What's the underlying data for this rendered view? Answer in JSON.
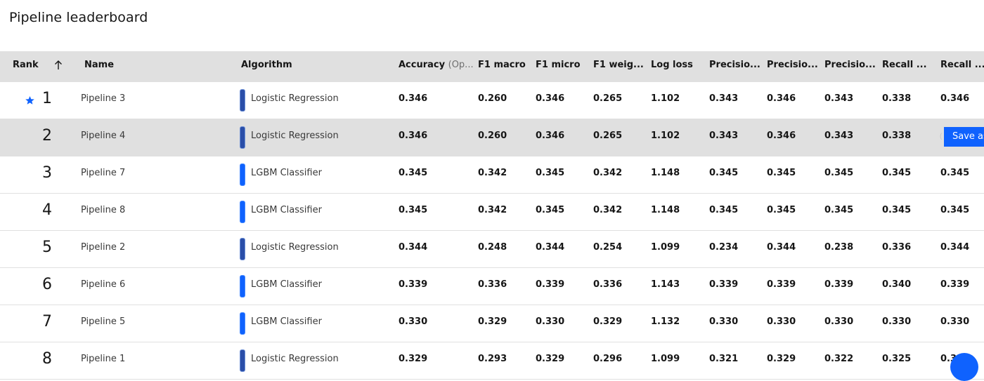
{
  "page": {
    "title": "Pipeline leaderboard"
  },
  "columns": {
    "rank": "Rank",
    "name": "Name",
    "algorithm": "Algorithm",
    "accuracy": "Accuracy",
    "accuracy_suffix": "(Op...",
    "f1_macro": "F1 macro",
    "f1_micro": "F1 micro",
    "f1_weighted": "F1 weig...",
    "log_loss": "Log loss",
    "precision1": "Precisio...",
    "precision2": "Precisio...",
    "precision3": "Precisio...",
    "recall1": "Recall ...",
    "recall2": "Recall ..."
  },
  "actions": {
    "save_label": "Save as"
  },
  "icons": {
    "sort": "arrow-up-icon",
    "star": "star-icon",
    "fab": "help-icon"
  },
  "colors": {
    "accent": "#0f62fe",
    "header_bg": "#e0e0e0",
    "selected_row": "#e0e0e0"
  },
  "rows": [
    {
      "rank": "1",
      "name": "Pipeline 3",
      "algorithm": "Logistic Regression",
      "starred": true,
      "accuracy": "0.346",
      "f1_macro": "0.260",
      "f1_micro": "0.346",
      "f1_weighted": "0.265",
      "log_loss": "1.102",
      "precision1": "0.343",
      "precision2": "0.346",
      "precision3": "0.343",
      "recall1": "0.338",
      "recall2": "0.346"
    },
    {
      "rank": "2",
      "name": "Pipeline 4",
      "algorithm": "Logistic Regression",
      "selected": true,
      "accuracy": "0.346",
      "f1_macro": "0.260",
      "f1_micro": "0.346",
      "f1_weighted": "0.265",
      "log_loss": "1.102",
      "precision1": "0.343",
      "precision2": "0.346",
      "precision3": "0.343",
      "recall1": "0.338",
      "recall2": ""
    },
    {
      "rank": "3",
      "name": "Pipeline 7",
      "algorithm": "LGBM Classifier",
      "accuracy": "0.345",
      "f1_macro": "0.342",
      "f1_micro": "0.345",
      "f1_weighted": "0.342",
      "log_loss": "1.148",
      "precision1": "0.345",
      "precision2": "0.345",
      "precision3": "0.345",
      "recall1": "0.345",
      "recall2": "0.345"
    },
    {
      "rank": "4",
      "name": "Pipeline 8",
      "algorithm": "LGBM Classifier",
      "accuracy": "0.345",
      "f1_macro": "0.342",
      "f1_micro": "0.345",
      "f1_weighted": "0.342",
      "log_loss": "1.148",
      "precision1": "0.345",
      "precision2": "0.345",
      "precision3": "0.345",
      "recall1": "0.345",
      "recall2": "0.345"
    },
    {
      "rank": "5",
      "name": "Pipeline 2",
      "algorithm": "Logistic Regression",
      "accuracy": "0.344",
      "f1_macro": "0.248",
      "f1_micro": "0.344",
      "f1_weighted": "0.254",
      "log_loss": "1.099",
      "precision1": "0.234",
      "precision2": "0.344",
      "precision3": "0.238",
      "recall1": "0.336",
      "recall2": "0.344"
    },
    {
      "rank": "6",
      "name": "Pipeline 6",
      "algorithm": "LGBM Classifier",
      "accuracy": "0.339",
      "f1_macro": "0.336",
      "f1_micro": "0.339",
      "f1_weighted": "0.336",
      "log_loss": "1.143",
      "precision1": "0.339",
      "precision2": "0.339",
      "precision3": "0.339",
      "recall1": "0.340",
      "recall2": "0.339"
    },
    {
      "rank": "7",
      "name": "Pipeline 5",
      "algorithm": "LGBM Classifier",
      "accuracy": "0.330",
      "f1_macro": "0.329",
      "f1_micro": "0.330",
      "f1_weighted": "0.329",
      "log_loss": "1.132",
      "precision1": "0.330",
      "precision2": "0.330",
      "precision3": "0.330",
      "recall1": "0.330",
      "recall2": "0.330"
    },
    {
      "rank": "8",
      "name": "Pipeline 1",
      "algorithm": "Logistic Regression",
      "accuracy": "0.329",
      "f1_macro": "0.293",
      "f1_micro": "0.329",
      "f1_weighted": "0.296",
      "log_loss": "1.099",
      "precision1": "0.321",
      "precision2": "0.329",
      "precision3": "0.322",
      "recall1": "0.325",
      "recall2": "0.329"
    }
  ]
}
